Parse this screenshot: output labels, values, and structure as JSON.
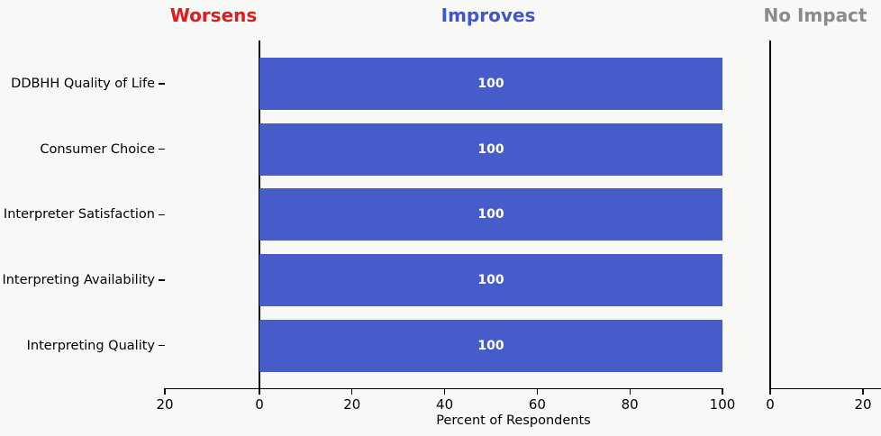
{
  "chart_data": {
    "type": "bar",
    "orientation": "horizontal",
    "categories": [
      "DDBHH Quality of Life",
      "Consumer Choice",
      "Interpreter Satisfaction",
      "Interpreting Availability",
      "Interpreting Quality"
    ],
    "series": [
      {
        "name": "Worsens",
        "values": [
          0,
          0,
          0,
          0,
          0
        ],
        "color": "#e01c1c"
      },
      {
        "name": "Improves",
        "values": [
          100,
          100,
          100,
          100,
          100
        ],
        "color": "#475ccb"
      },
      {
        "name": "No Impact",
        "values": [
          0,
          0,
          0,
          0,
          0
        ],
        "color": "#8b8b8b"
      }
    ],
    "bar_value_labels": [
      "100",
      "100",
      "100",
      "100",
      "100"
    ],
    "bar_label_color": "#ffffff",
    "xlabel": "Percent of Respondents",
    "panel_titles": [
      {
        "label": "Worsens",
        "color": "#e01c1c"
      },
      {
        "label": "Improves",
        "color": "#4355c7"
      },
      {
        "label": "No Impact",
        "color": "#8b8b8b"
      }
    ],
    "axes": {
      "main": {
        "tick_labels": [
          "20",
          "0",
          "20",
          "40",
          "60",
          "80",
          "100"
        ],
        "tick_values": [
          -20,
          0,
          20,
          40,
          60,
          80,
          100
        ],
        "note": "diverging axis: Worsens (left of 0) / Improves (right of 0)"
      },
      "no_impact": {
        "tick_labels": [
          "0",
          "20"
        ],
        "tick_values": [
          0,
          20
        ]
      }
    },
    "grid": false,
    "legend": "none",
    "background": "#f8f8f7"
  }
}
